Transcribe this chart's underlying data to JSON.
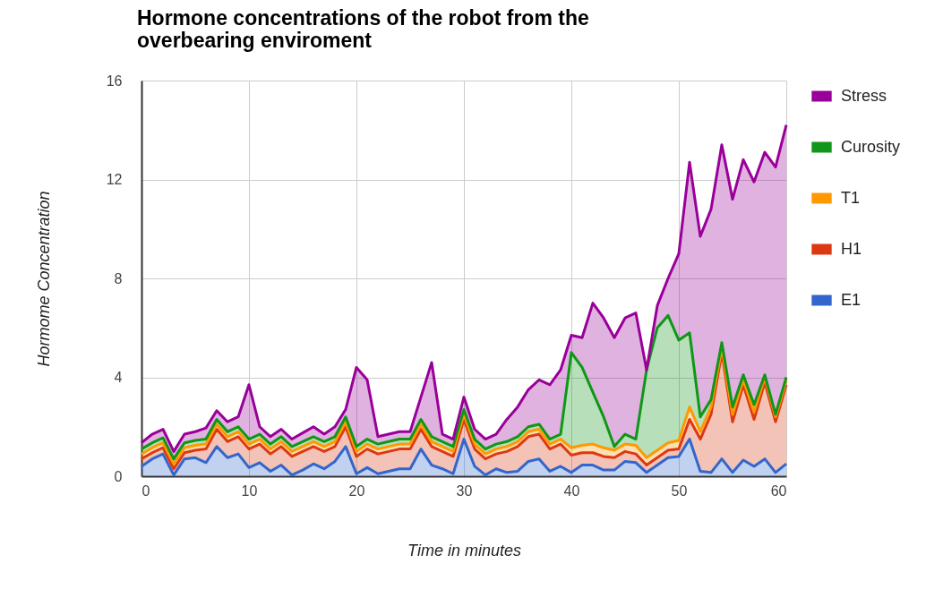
{
  "chart_data": {
    "type": "area",
    "stacked": true,
    "title": "Hormone concentrations of the robot from the overbearing enviroment",
    "xlabel": "Time in minutes",
    "ylabel": "Hormome Concentration",
    "x": [
      0,
      1,
      2,
      3,
      4,
      5,
      6,
      7,
      8,
      9,
      10,
      11,
      12,
      13,
      14,
      15,
      16,
      17,
      18,
      19,
      20,
      21,
      22,
      23,
      24,
      25,
      26,
      27,
      28,
      29,
      30,
      31,
      32,
      33,
      34,
      35,
      36,
      37,
      38,
      39,
      40,
      41,
      42,
      43,
      44,
      45,
      46,
      47,
      48,
      49,
      50,
      51,
      52,
      53,
      54,
      55,
      56,
      57,
      58,
      59,
      60
    ],
    "xlim": [
      0,
      60
    ],
    "xticks": [
      0,
      10,
      20,
      30,
      40,
      50,
      60
    ],
    "ylim": [
      0,
      16
    ],
    "yticks": [
      0,
      4,
      8,
      12,
      16
    ],
    "grid": true,
    "legend": "right",
    "series": [
      {
        "name": "E1",
        "color": "#3366cc",
        "values": [
          0.4,
          0.7,
          0.9,
          0.05,
          0.7,
          0.75,
          0.55,
          1.2,
          0.75,
          0.9,
          0.35,
          0.55,
          0.2,
          0.45,
          0.05,
          0.25,
          0.5,
          0.3,
          0.6,
          1.2,
          0.1,
          0.35,
          0.1,
          0.2,
          0.3,
          0.3,
          1.1,
          0.45,
          0.3,
          0.1,
          1.5,
          0.4,
          0.05,
          0.3,
          0.15,
          0.2,
          0.6,
          0.7,
          0.2,
          0.4,
          0.15,
          0.45,
          0.45,
          0.25,
          0.25,
          0.6,
          0.55,
          0.15,
          0.45,
          0.75,
          0.8,
          1.5,
          0.2,
          0.15,
          0.7,
          0.15,
          0.65,
          0.4,
          0.7,
          0.15,
          0.5
        ]
      },
      {
        "name": "H1",
        "color": "#dc3912",
        "values": [
          0.3,
          0.25,
          0.25,
          0.25,
          0.25,
          0.3,
          0.55,
          0.7,
          0.65,
          0.7,
          0.75,
          0.75,
          0.7,
          0.75,
          0.75,
          0.75,
          0.7,
          0.7,
          0.6,
          0.8,
          0.7,
          0.75,
          0.8,
          0.8,
          0.8,
          0.8,
          0.8,
          0.75,
          0.7,
          0.7,
          0.8,
          0.7,
          0.65,
          0.6,
          0.85,
          1.0,
          1.0,
          1.0,
          0.9,
          0.9,
          0.7,
          0.5,
          0.5,
          0.55,
          0.5,
          0.4,
          0.35,
          0.3,
          0.3,
          0.3,
          0.3,
          0.8,
          1.3,
          2.35,
          4.3,
          2.05,
          3.05,
          1.9,
          3.1,
          2.05,
          3.2
        ]
      },
      {
        "name": "T1",
        "color": "#ff9900",
        "values": [
          0.2,
          0.2,
          0.2,
          0.2,
          0.2,
          0.2,
          0.2,
          0.2,
          0.2,
          0.2,
          0.2,
          0.2,
          0.2,
          0.2,
          0.2,
          0.2,
          0.2,
          0.2,
          0.2,
          0.2,
          0.2,
          0.2,
          0.2,
          0.2,
          0.2,
          0.2,
          0.2,
          0.2,
          0.2,
          0.2,
          0.2,
          0.2,
          0.2,
          0.2,
          0.2,
          0.2,
          0.2,
          0.2,
          0.2,
          0.2,
          0.3,
          0.3,
          0.35,
          0.35,
          0.3,
          0.3,
          0.35,
          0.3,
          0.3,
          0.3,
          0.35,
          0.5,
          0.3,
          0.3,
          0.2,
          0.3,
          0.2,
          0.3,
          0.2,
          0.2,
          0.15
        ]
      },
      {
        "name": "Curosity",
        "color": "#109618",
        "values": [
          0.2,
          0.2,
          0.2,
          0.2,
          0.2,
          0.2,
          0.2,
          0.2,
          0.2,
          0.2,
          0.2,
          0.2,
          0.2,
          0.2,
          0.2,
          0.2,
          0.2,
          0.2,
          0.2,
          0.2,
          0.2,
          0.2,
          0.2,
          0.2,
          0.2,
          0.2,
          0.2,
          0.2,
          0.2,
          0.2,
          0.2,
          0.2,
          0.2,
          0.2,
          0.2,
          0.2,
          0.2,
          0.2,
          0.2,
          0.2,
          3.85,
          3.15,
          2.1,
          1.25,
          0.15,
          0.4,
          0.25,
          3.55,
          4.95,
          5.15,
          4.05,
          3.0,
          0.6,
          0.3,
          0.2,
          0.3,
          0.2,
          0.3,
          0.1,
          0.1,
          0.15
        ]
      },
      {
        "name": "Stress",
        "color": "#990099",
        "values": [
          0.25,
          0.35,
          0.35,
          0.3,
          0.35,
          0.35,
          0.45,
          0.35,
          0.4,
          0.4,
          2.2,
          0.3,
          0.3,
          0.3,
          0.3,
          0.35,
          0.4,
          0.3,
          0.4,
          0.3,
          3.2,
          2.4,
          0.3,
          0.3,
          0.3,
          0.3,
          0.9,
          3.0,
          0.3,
          0.3,
          0.5,
          0.4,
          0.4,
          0.4,
          0.9,
          1.2,
          1.5,
          1.8,
          2.2,
          2.6,
          0.7,
          1.2,
          3.6,
          4.0,
          4.4,
          4.7,
          5.1,
          0,
          0.9,
          1.5,
          3.5,
          6.9,
          7.3,
          7.7,
          8.0,
          8.4,
          8.7,
          9.0,
          9.0,
          10.0,
          10.2
        ]
      }
    ]
  }
}
